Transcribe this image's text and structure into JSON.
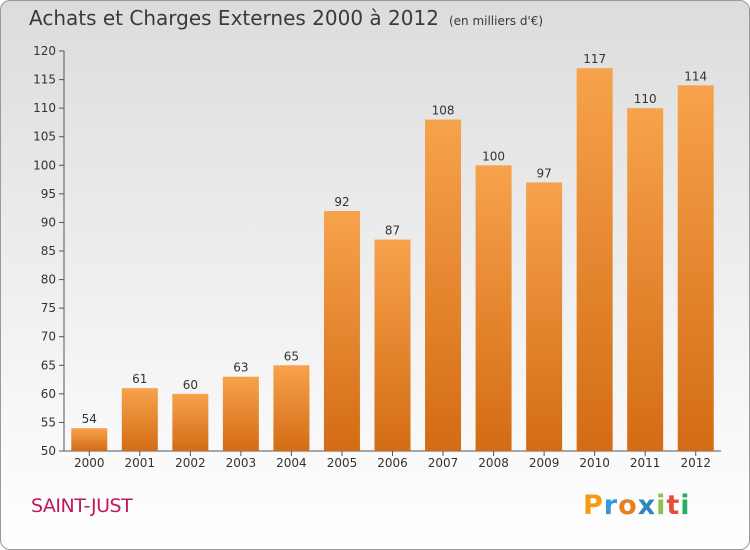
{
  "chart_data": {
    "type": "bar",
    "title": "Achats et Charges Externes 2000 à 2012",
    "subtitle": "(en milliers d'€)",
    "categories": [
      "2000",
      "2001",
      "2002",
      "2003",
      "2004",
      "2005",
      "2006",
      "2007",
      "2008",
      "2009",
      "2010",
      "2011",
      "2012"
    ],
    "values": [
      54,
      61,
      60,
      63,
      65,
      92,
      87,
      108,
      100,
      97,
      117,
      110,
      114
    ],
    "ylim": [
      50,
      120
    ],
    "yticks": [
      50,
      55,
      60,
      65,
      70,
      75,
      80,
      85,
      90,
      95,
      100,
      105,
      110,
      115,
      120
    ],
    "grid": false,
    "bar_color_top": "#f7a24c",
    "bar_color_bottom": "#d36c14"
  },
  "footer": {
    "commune": "SAINT-JUST",
    "logo_letters": [
      "P",
      "r",
      "o",
      "x",
      "i",
      "t",
      "i"
    ],
    "logo_colors": [
      "#f39c12",
      "#3498db",
      "#e67e22",
      "#2e86c1",
      "#8bc34a",
      "#e74c3c",
      "#27ae60"
    ]
  }
}
